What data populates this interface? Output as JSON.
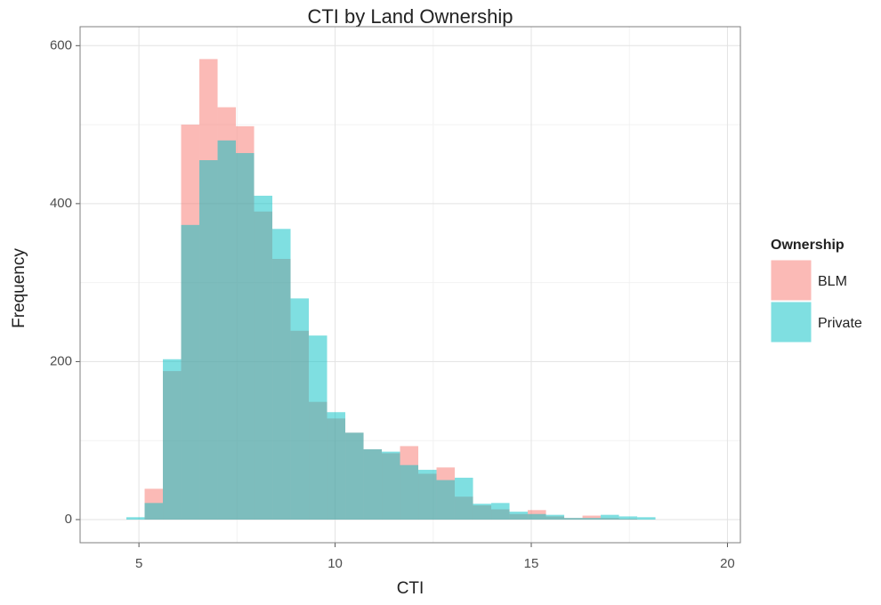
{
  "chart_data": {
    "type": "histogram",
    "title": "CTI by Land Ownership",
    "x_label": "CTI",
    "y_label": "Frequency",
    "legend_title": "Ownership",
    "bins": [
      4.68,
      5.145,
      5.61,
      6.075,
      6.54,
      7.005,
      7.47,
      7.935,
      8.4,
      8.865,
      9.33,
      9.795,
      10.26,
      10.725,
      11.19,
      11.655,
      12.12,
      12.585,
      13.05,
      13.515,
      13.98,
      14.445,
      14.91,
      15.375,
      15.84,
      16.305,
      16.77,
      17.235,
      17.7,
      18.165
    ],
    "series": [
      {
        "name": "BLM",
        "color": "#F8766D",
        "values": [
          0,
          39,
          188,
          500,
          583,
          522,
          498,
          390,
          330,
          239,
          149,
          128,
          110,
          89,
          84,
          93,
          58,
          66,
          29,
          18,
          13,
          7,
          12,
          4,
          2,
          5,
          2,
          1,
          0
        ]
      },
      {
        "name": "Private",
        "color": "#00BFC4",
        "values": [
          3,
          21,
          203,
          373,
          455,
          480,
          464,
          410,
          368,
          280,
          233,
          136,
          110,
          89,
          86,
          69,
          63,
          50,
          53,
          20,
          21,
          10,
          7,
          6,
          2,
          2,
          6,
          4,
          3
        ]
      }
    ],
    "opacity": 0.5,
    "xlim": [
      3.5,
      20.33
    ],
    "ylim": [
      -29.3,
      624
    ],
    "xticks": [
      5,
      10,
      15,
      20
    ],
    "yticks": [
      0,
      200,
      400,
      600
    ],
    "grid": true,
    "legend": "right"
  }
}
